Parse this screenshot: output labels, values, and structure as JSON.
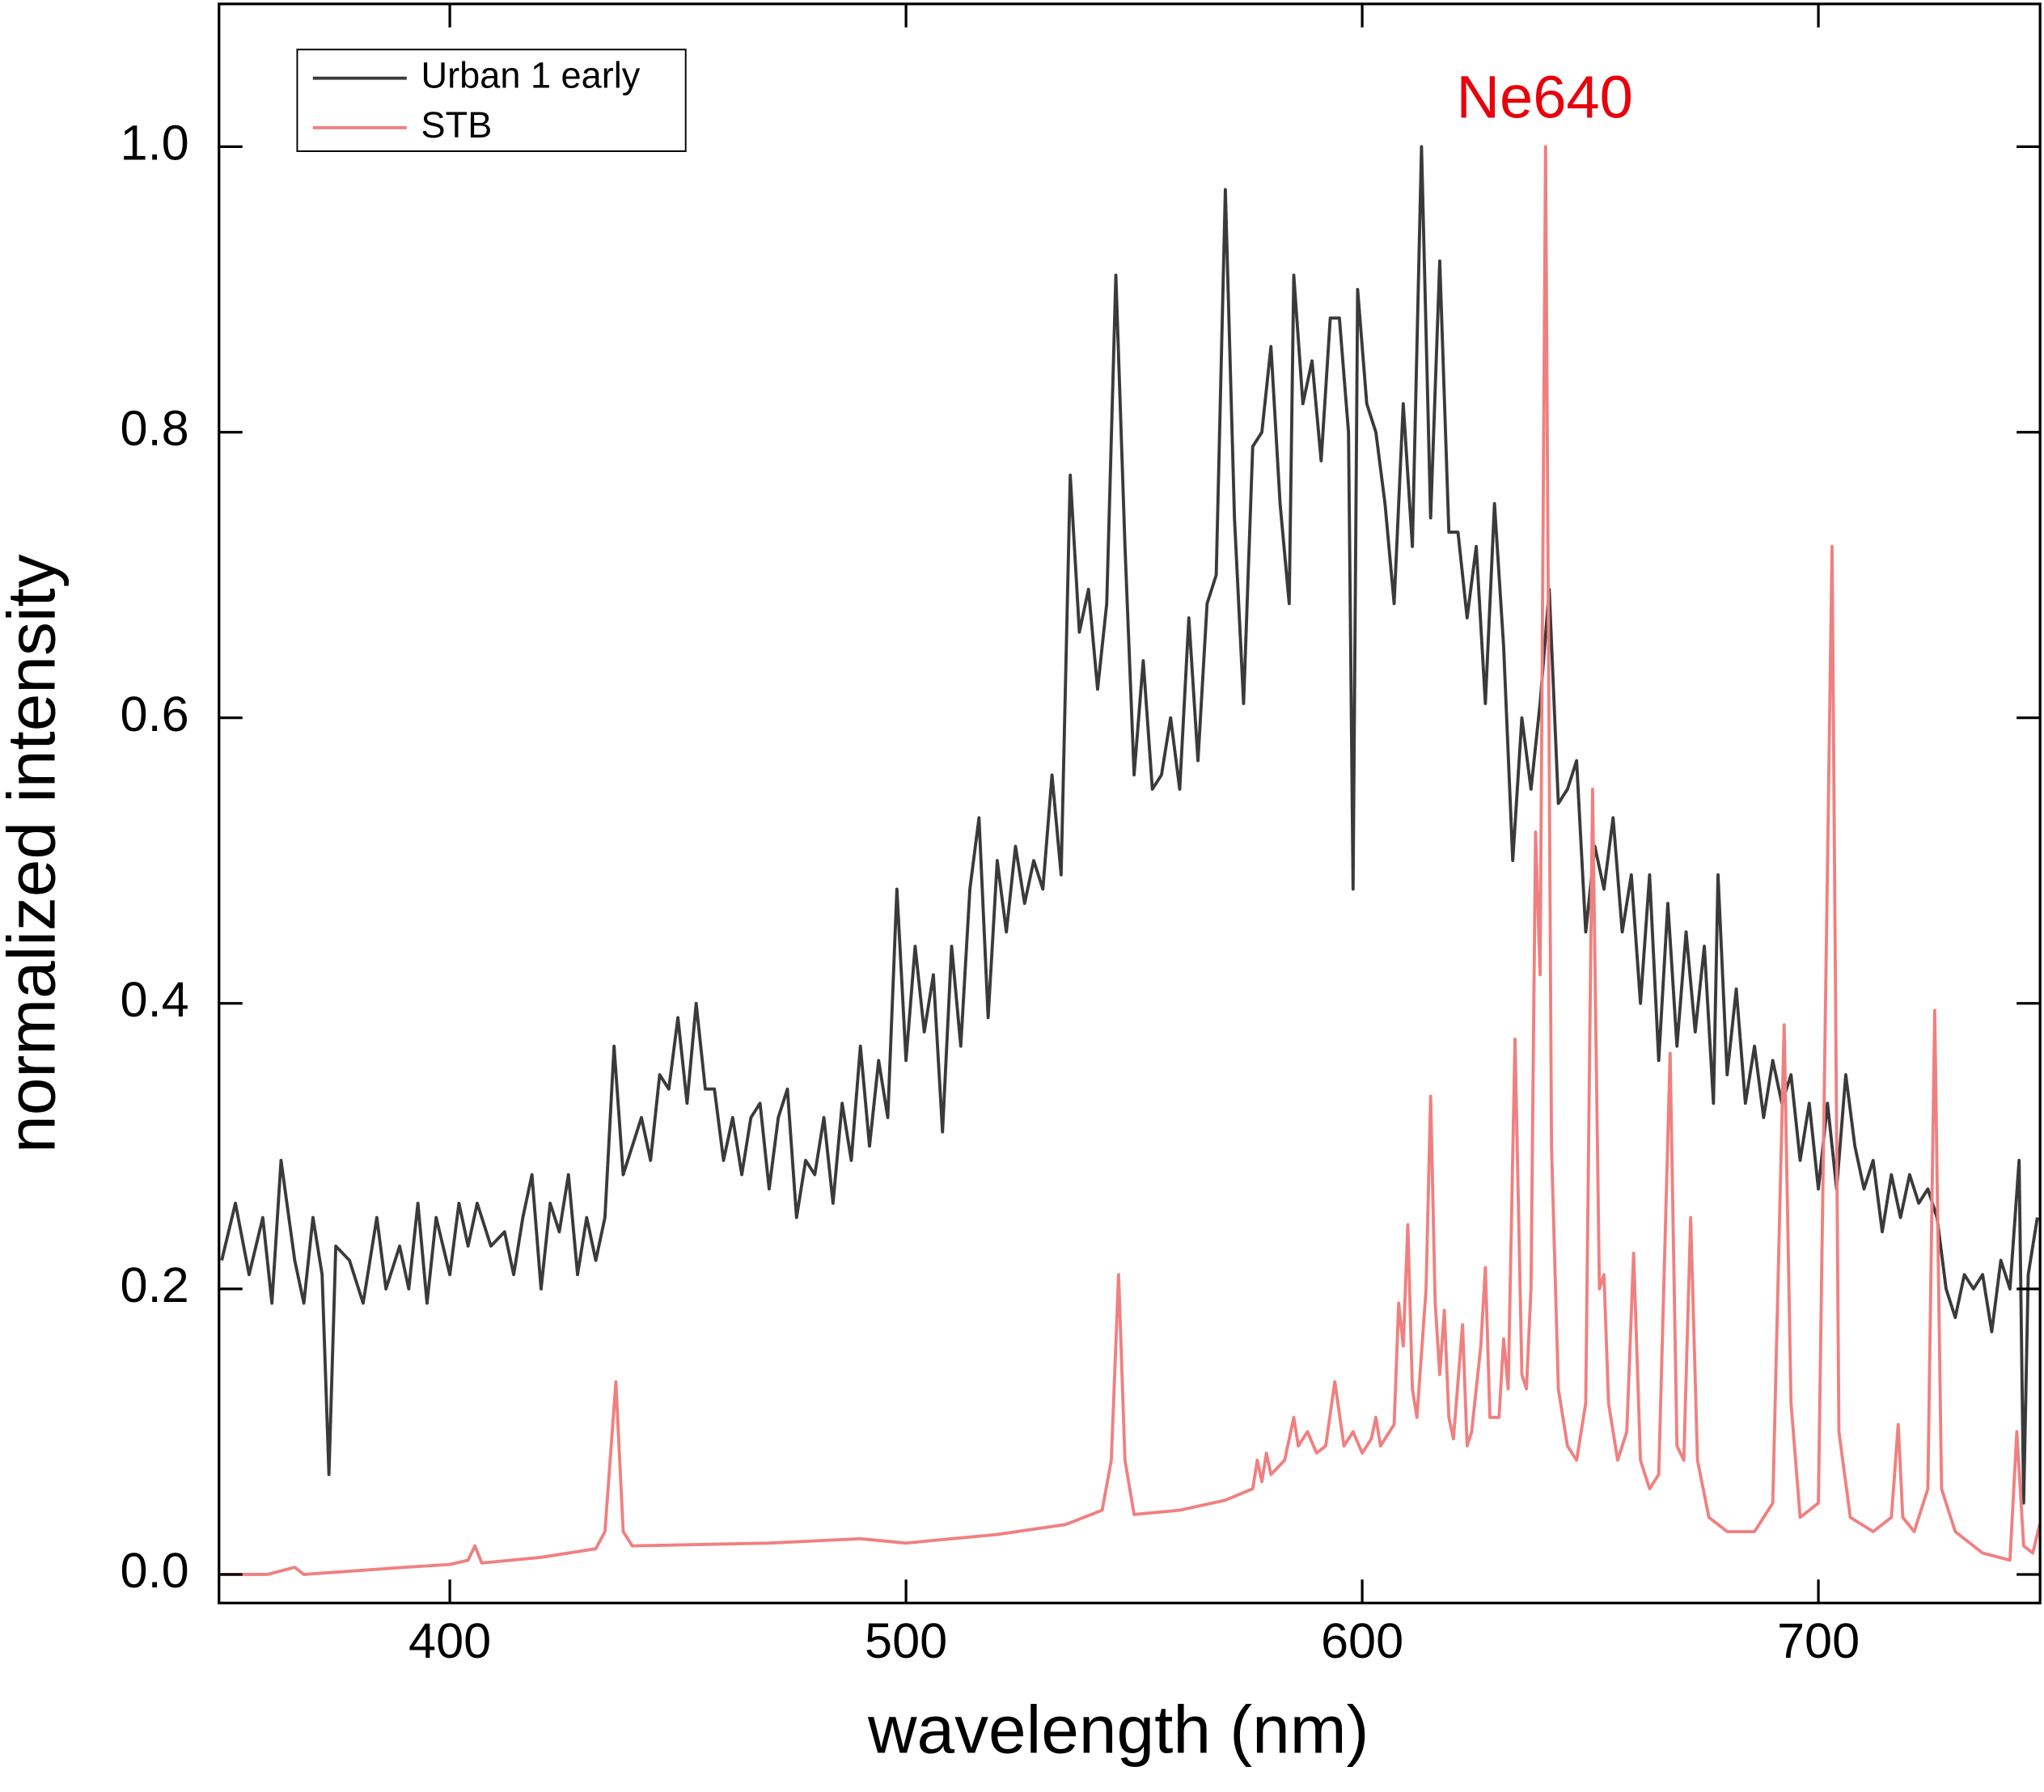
{
  "chart_data": {
    "type": "line",
    "xlabel": "wavelength (nm)",
    "ylabel": "normalized intensity",
    "annotation": {
      "text": "Ne640",
      "x": 640,
      "color": "#e8000b"
    },
    "xlim": [
      349.4,
      748.6
    ],
    "ylim": [
      -0.02,
      1.1
    ],
    "xticks": [
      400,
      500,
      600,
      700
    ],
    "yticks": [
      {
        "value": 0,
        "label": "0.0"
      },
      0.2,
      0.4,
      0.6,
      0.8,
      {
        "value": 1,
        "label": "1.0"
      }
    ],
    "legend": "upper left",
    "series": [
      {
        "name": "Urban 1 early",
        "color": "#3a3a3a",
        "x": [
          350,
          353,
          356,
          359,
          361,
          363,
          366,
          368,
          370,
          372,
          373.5,
          375,
          378,
          381,
          384,
          386,
          389,
          391,
          393,
          395,
          397,
          400,
          402,
          404,
          406,
          409,
          412,
          414,
          416,
          418,
          420,
          422,
          424,
          426,
          428,
          430,
          432,
          434,
          436,
          438,
          440,
          442,
          444,
          446,
          448,
          450,
          452,
          454,
          456,
          458,
          460,
          462,
          464,
          466,
          468,
          470,
          472,
          474,
          476,
          478,
          480,
          482,
          484,
          486,
          488,
          490,
          492,
          494,
          496,
          498,
          500,
          502,
          504,
          506,
          508,
          510,
          512,
          514,
          516,
          518,
          520,
          522,
          524,
          526,
          528,
          530,
          532,
          534,
          536,
          538,
          540,
          542,
          544,
          546,
          548,
          550,
          552,
          554,
          556,
          558,
          560,
          562,
          564,
          566,
          568,
          570,
          572,
          574,
          576,
          578,
          580,
          582,
          584,
          585,
          587,
          589,
          591,
          593,
          595,
          597,
          598,
          599,
          601,
          603,
          605,
          607,
          609,
          611,
          613,
          615,
          617,
          619,
          621,
          623,
          625,
          627,
          629,
          631,
          633,
          635,
          637,
          639,
          641,
          643,
          645,
          647,
          649,
          651,
          653,
          655,
          657,
          659,
          661,
          663,
          665,
          667,
          669,
          671,
          673,
          675,
          677,
          678,
          680,
          682,
          684,
          686,
          688,
          690,
          692,
          694,
          696,
          698,
          700,
          702,
          704,
          706,
          708,
          710,
          712,
          714,
          716,
          718,
          720,
          722,
          724,
          726,
          728,
          730,
          732,
          734,
          736,
          738,
          740,
          742,
          744,
          745,
          746,
          748
        ],
        "values": [
          0.22,
          0.26,
          0.21,
          0.25,
          0.19,
          0.29,
          0.22,
          0.19,
          0.25,
          0.21,
          0.07,
          0.23,
          0.22,
          0.19,
          0.25,
          0.2,
          0.23,
          0.2,
          0.26,
          0.19,
          0.25,
          0.21,
          0.26,
          0.23,
          0.26,
          0.23,
          0.24,
          0.21,
          0.25,
          0.28,
          0.2,
          0.26,
          0.24,
          0.28,
          0.21,
          0.25,
          0.22,
          0.25,
          0.37,
          0.28,
          0.3,
          0.32,
          0.29,
          0.35,
          0.34,
          0.39,
          0.33,
          0.4,
          0.34,
          0.34,
          0.29,
          0.32,
          0.28,
          0.32,
          0.33,
          0.27,
          0.32,
          0.34,
          0.25,
          0.29,
          0.28,
          0.32,
          0.26,
          0.33,
          0.29,
          0.37,
          0.3,
          0.36,
          0.32,
          0.48,
          0.36,
          0.44,
          0.38,
          0.42,
          0.31,
          0.44,
          0.37,
          0.48,
          0.53,
          0.39,
          0.5,
          0.45,
          0.51,
          0.47,
          0.5,
          0.48,
          0.56,
          0.49,
          0.77,
          0.66,
          0.69,
          0.62,
          0.68,
          0.91,
          0.72,
          0.56,
          0.64,
          0.55,
          0.56,
          0.6,
          0.55,
          0.67,
          0.57,
          0.68,
          0.7,
          0.97,
          0.74,
          0.61,
          0.79,
          0.8,
          0.86,
          0.75,
          0.68,
          0.91,
          0.82,
          0.85,
          0.78,
          0.88,
          0.88,
          0.8,
          0.48,
          0.9,
          0.82,
          0.8,
          0.75,
          0.68,
          0.82,
          0.72,
          1.0,
          0.74,
          0.92,
          0.73,
          0.73,
          0.67,
          0.72,
          0.61,
          0.75,
          0.65,
          0.5,
          0.6,
          0.55,
          0.61,
          0.69,
          0.54,
          0.55,
          0.57,
          0.45,
          0.51,
          0.48,
          0.53,
          0.45,
          0.49,
          0.4,
          0.49,
          0.36,
          0.47,
          0.37,
          0.45,
          0.38,
          0.44,
          0.33,
          0.49,
          0.35,
          0.41,
          0.33,
          0.37,
          0.32,
          0.36,
          0.33,
          0.35,
          0.29,
          0.33,
          0.27,
          0.33,
          0.27,
          0.35,
          0.3,
          0.27,
          0.29,
          0.24,
          0.28,
          0.25,
          0.28,
          0.26,
          0.27,
          0.25,
          0.2,
          0.18,
          0.21,
          0.2,
          0.21,
          0.17,
          0.22,
          0.2,
          0.29,
          0.05,
          0.21,
          0.25
        ]
      },
      {
        "name": "STB",
        "color": "#f08080",
        "x": [
          350,
          360,
          366,
          368,
          390,
          400,
          404,
          405.5,
          407,
          420,
          432,
          434,
          436.4,
          438,
          440,
          470,
          490,
          500,
          520,
          535,
          543,
          545,
          546.6,
          548,
          550,
          560,
          570,
          576,
          577,
          578,
          579,
          580,
          583,
          585,
          586,
          588,
          590,
          592,
          594,
          596,
          598,
          600,
          602,
          603,
          604,
          607,
          608,
          609,
          610,
          611,
          612,
          614,
          615,
          616,
          617,
          618,
          619,
          620,
          622,
          623,
          624,
          626,
          627,
          628,
          630,
          631,
          632,
          633.5,
          635,
          636,
          637,
          638,
          639,
          640.2,
          641.5,
          643,
          645,
          647,
          649,
          650.5,
          652,
          653,
          654,
          656,
          658,
          659.5,
          661,
          663,
          665,
          667.5,
          669,
          670.5,
          672,
          673.5,
          676,
          680,
          686,
          690,
          692.5,
          694,
          696,
          700,
          703,
          704.5,
          707,
          712,
          716,
          717.5,
          718.5,
          721,
          724,
          725.5,
          727,
          730,
          736,
          742,
          743.5,
          745,
          747,
          748.5
        ],
        "values": [
          0.0,
          0.0,
          0.005,
          0.0,
          0.005,
          0.007,
          0.01,
          0.02,
          0.008,
          0.012,
          0.018,
          0.03,
          0.135,
          0.03,
          0.02,
          0.022,
          0.025,
          0.022,
          0.028,
          0.035,
          0.045,
          0.08,
          0.21,
          0.08,
          0.042,
          0.045,
          0.052,
          0.06,
          0.08,
          0.065,
          0.085,
          0.07,
          0.08,
          0.11,
          0.09,
          0.1,
          0.085,
          0.09,
          0.135,
          0.09,
          0.1,
          0.085,
          0.095,
          0.11,
          0.09,
          0.105,
          0.19,
          0.16,
          0.245,
          0.13,
          0.11,
          0.2,
          0.335,
          0.19,
          0.14,
          0.185,
          0.11,
          0.095,
          0.175,
          0.09,
          0.1,
          0.16,
          0.215,
          0.11,
          0.11,
          0.165,
          0.13,
          0.375,
          0.14,
          0.13,
          0.2,
          0.52,
          0.42,
          1.0,
          0.3,
          0.13,
          0.09,
          0.08,
          0.12,
          0.55,
          0.2,
          0.21,
          0.12,
          0.08,
          0.1,
          0.225,
          0.08,
          0.06,
          0.07,
          0.365,
          0.09,
          0.08,
          0.25,
          0.08,
          0.04,
          0.03,
          0.03,
          0.05,
          0.385,
          0.12,
          0.04,
          0.05,
          0.72,
          0.1,
          0.04,
          0.03,
          0.04,
          0.105,
          0.04,
          0.03,
          0.06,
          0.395,
          0.06,
          0.03,
          0.015,
          0.01,
          0.1,
          0.02,
          0.015,
          0.035
        ]
      }
    ]
  }
}
